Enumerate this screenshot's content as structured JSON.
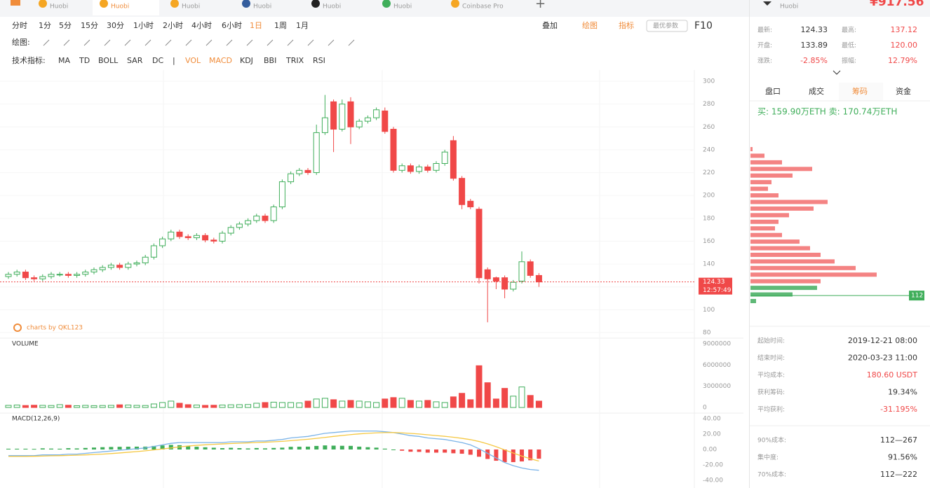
{
  "tabs": [
    {
      "exchange": "Huobi"
    },
    {
      "exchange": "Huobi"
    },
    {
      "exchange": "Huobi"
    },
    {
      "exchange": "Huobi"
    },
    {
      "exchange": "Huobi"
    },
    {
      "exchange": "Huobi"
    },
    {
      "exchange": "Coinbase Pro"
    }
  ],
  "header": {
    "exchange": "Huobi",
    "price": "¥917.56"
  },
  "toolbar": {
    "periods": [
      "分时",
      "1分",
      "5分",
      "15分",
      "30分",
      "1小时",
      "2小时",
      "4小时",
      "6小时",
      "1日",
      "1周",
      "1月"
    ],
    "actions": [
      "叠加",
      "绘图",
      "指标"
    ],
    "button": "最优参数",
    "f10": "F10",
    "draw_label": "绘图:",
    "indicator_label": "技术指标:",
    "indicators": [
      "MA",
      "TD",
      "BOLL",
      "SAR",
      "DC",
      "|",
      "VOL",
      "MACD",
      "KDJ",
      "BBI",
      "TRIX",
      "RSI"
    ]
  },
  "price_chart": {
    "type": "candlestick",
    "ylim": [
      80,
      300
    ],
    "yticks": [
      80,
      100,
      120,
      140,
      160,
      180,
      200,
      220,
      240,
      260,
      280,
      300
    ],
    "last_price": 124.33,
    "last_label": "124.33",
    "time_label": "12:57:49",
    "credit": "charts by QKL123",
    "up_color": "#3fae5a",
    "down_color": "#f04848",
    "candles": {
      "open": [
        129,
        131,
        133,
        128,
        127,
        129,
        131,
        131,
        130,
        131,
        133,
        135,
        137,
        139,
        137,
        140,
        141,
        146,
        156,
        162,
        168,
        164,
        163,
        165,
        161,
        160,
        167,
        172,
        175,
        178,
        182,
        178,
        190,
        212,
        219,
        222,
        220,
        255,
        282,
        258,
        282,
        260,
        265,
        268,
        274,
        258,
        222,
        226,
        221,
        225,
        222,
        228,
        248,
        215,
        195,
        188,
        135,
        128,
        128,
        118,
        125,
        142,
        130
      ],
      "high": [
        133,
        135,
        135,
        130,
        131,
        133,
        133,
        133,
        133,
        135,
        137,
        139,
        141,
        141,
        142,
        143,
        148,
        158,
        164,
        170,
        170,
        166,
        167,
        167,
        163,
        169,
        174,
        177,
        180,
        184,
        184,
        192,
        214,
        221,
        224,
        224,
        262,
        288,
        284,
        284,
        286,
        267,
        270,
        277,
        277,
        260,
        228,
        228,
        227,
        227,
        230,
        240,
        252,
        217,
        197,
        190,
        137,
        129,
        130,
        126,
        151,
        144,
        132
      ],
      "low": [
        127,
        129,
        126,
        125,
        125,
        127,
        129,
        128,
        128,
        129,
        131,
        133,
        135,
        135,
        135,
        138,
        139,
        144,
        154,
        160,
        162,
        161,
        161,
        159,
        158,
        158,
        165,
        170,
        173,
        176,
        176,
        176,
        188,
        210,
        217,
        218,
        218,
        253,
        238,
        256,
        245,
        258,
        263,
        266,
        254,
        220,
        220,
        219,
        219,
        220,
        220,
        226,
        213,
        188,
        188,
        123,
        89,
        118,
        110,
        116,
        123,
        128,
        120
      ],
      "close": [
        131,
        133,
        128,
        127,
        129,
        131,
        131,
        130,
        131,
        133,
        135,
        137,
        139,
        137,
        140,
        141,
        146,
        156,
        162,
        168,
        164,
        163,
        165,
        161,
        160,
        167,
        172,
        175,
        178,
        182,
        178,
        190,
        212,
        219,
        222,
        220,
        255,
        268,
        258,
        280,
        260,
        265,
        268,
        275,
        256,
        222,
        226,
        221,
        225,
        222,
        228,
        238,
        215,
        192,
        190,
        128,
        127,
        125,
        118,
        124,
        142,
        130,
        124.33
      ]
    }
  },
  "volume_chart": {
    "type": "bar",
    "title": "VOLUME",
    "ylim": [
      0,
      9000000
    ],
    "yticks": [
      0,
      3000000,
      6000000,
      9000000
    ],
    "values": [
      300000,
      350000,
      280000,
      320000,
      300000,
      280000,
      400000,
      320000,
      250000,
      300000,
      260000,
      280000,
      300000,
      380000,
      350000,
      300000,
      280000,
      500000,
      700000,
      900000,
      600000,
      400000,
      350000,
      300000,
      320000,
      350000,
      380000,
      400000,
      420000,
      600000,
      700000,
      750000,
      700000,
      700000,
      650000,
      900000,
      1200000,
      1300000,
      1100000,
      900000,
      1000000,
      900000,
      800000,
      700000,
      1200000,
      1400000,
      1300000,
      1000000,
      900000,
      1000000,
      800000,
      700000,
      1500000,
      2000000,
      1100000,
      5900000,
      3500000,
      1200000,
      2700000,
      1600000,
      2900000,
      1700000,
      900000
    ]
  },
  "macd_chart": {
    "type": "line",
    "title": "MACD(12,26,9)",
    "ylim": [
      -40,
      40
    ],
    "yticks": [
      {
        "value": -40,
        "label": "-40.00"
      },
      {
        "value": -20,
        "label": "-20.00"
      },
      {
        "value": 0,
        "label": "0.00"
      },
      {
        "value": 20,
        "label": "20.00"
      },
      {
        "value": 40,
        "label": "40.00"
      }
    ],
    "dif": {
      "color": "#7ab3e8",
      "values": [
        -8,
        -8,
        -8,
        -8,
        -7,
        -7,
        -7,
        -6,
        -6,
        -5,
        -4,
        -3,
        -2,
        -1,
        0,
        1,
        2,
        4,
        6,
        8,
        9,
        9,
        9,
        9,
        9,
        9,
        10,
        10,
        10,
        11,
        11,
        12,
        13,
        15,
        16,
        17,
        19,
        21,
        22,
        23,
        24,
        24,
        24,
        24,
        23,
        22,
        20,
        18,
        17,
        15,
        14,
        13,
        11,
        9,
        6,
        1,
        -5,
        -11,
        -17,
        -21,
        -24,
        -26,
        -27
      ]
    },
    "dea": {
      "color": "#f5c842",
      "values": [
        -9,
        -9,
        -9,
        -8.8,
        -8.5,
        -8.2,
        -8,
        -7.7,
        -7.4,
        -7,
        -6.5,
        -6,
        -5.3,
        -4.5,
        -3.6,
        -2.7,
        -1.7,
        -0.6,
        0.7,
        2,
        3.4,
        4.5,
        5.4,
        6.1,
        6.7,
        7.2,
        7.8,
        8.2,
        8.6,
        9.1,
        9.5,
        10,
        10.6,
        11.5,
        12.4,
        13.3,
        14.4,
        15.7,
        17,
        18.2,
        19.3,
        20.3,
        21,
        21.6,
        21.9,
        22,
        21.6,
        20.9,
        20.1,
        19.1,
        18.1,
        17.1,
        15.9,
        14.5,
        12.8,
        10.4,
        7.3,
        3.6,
        -0.5,
        -4.6,
        -8.5,
        -12,
        -15
      ]
    },
    "histogram": [
      1,
      1,
      1,
      0.8,
      1.5,
      1.2,
      1,
      1.7,
      1.4,
      2,
      2.5,
      3,
      3.3,
      3.5,
      3.6,
      3.7,
      3.7,
      4.6,
      5.3,
      6,
      5.6,
      4.5,
      3.6,
      2.9,
      2.3,
      1.8,
      2.2,
      1.8,
      1.4,
      1.9,
      1.5,
      2,
      2.4,
      3.5,
      3.6,
      3.7,
      4.6,
      5.3,
      5,
      4.8,
      4.7,
      3.7,
      3,
      2.4,
      1.1,
      0,
      -1.6,
      -2.9,
      -3.1,
      -4.1,
      -4.1,
      -4.1,
      -4.9,
      -5.5,
      -6.8,
      -9.4,
      -12.3,
      -14.6,
      -16.5,
      -16.4,
      -15.5,
      -14,
      -12
    ]
  },
  "stats": [
    [
      "最新:",
      "124.33",
      "最高:",
      "137.12"
    ],
    [
      "开盘:",
      "133.89",
      "最低:",
      "120.00"
    ],
    [
      "涨跌:",
      "-2.85%",
      "振幅:",
      "12.79%"
    ]
  ],
  "side_tabs": [
    "盘口",
    "成交",
    "筹码",
    "资金"
  ],
  "buy_sell": "买: 159.90万ETH   卖: 170.74万ETH",
  "chips": {
    "marker": 112,
    "marker_label": "112",
    "price": [
      245,
      239,
      233,
      227,
      221,
      215,
      209,
      203,
      197,
      191,
      185,
      179,
      173,
      167,
      161,
      155,
      149,
      143,
      137,
      131,
      125,
      119,
      113,
      107
    ],
    "amount": [
      3,
      20,
      45,
      88,
      60,
      30,
      25,
      40,
      110,
      90,
      55,
      40,
      35,
      45,
      70,
      85,
      100,
      120,
      150,
      180,
      100,
      95,
      60,
      8
    ]
  },
  "info": [
    [
      "起始时间:",
      "2019-12-21 08:00"
    ],
    [
      "结束时间:",
      "2020-03-23 11:00"
    ],
    [
      "平均成本:",
      "180.60 USDT"
    ],
    [
      "获利筹码:",
      "19.34%"
    ],
    [
      "平均获利:",
      "-31.195%"
    ]
  ],
  "cost": [
    [
      "90%成本:",
      "112—267"
    ],
    [
      "集中度:",
      "91.56%"
    ],
    [
      "70%成本:",
      "112—222"
    ]
  ]
}
